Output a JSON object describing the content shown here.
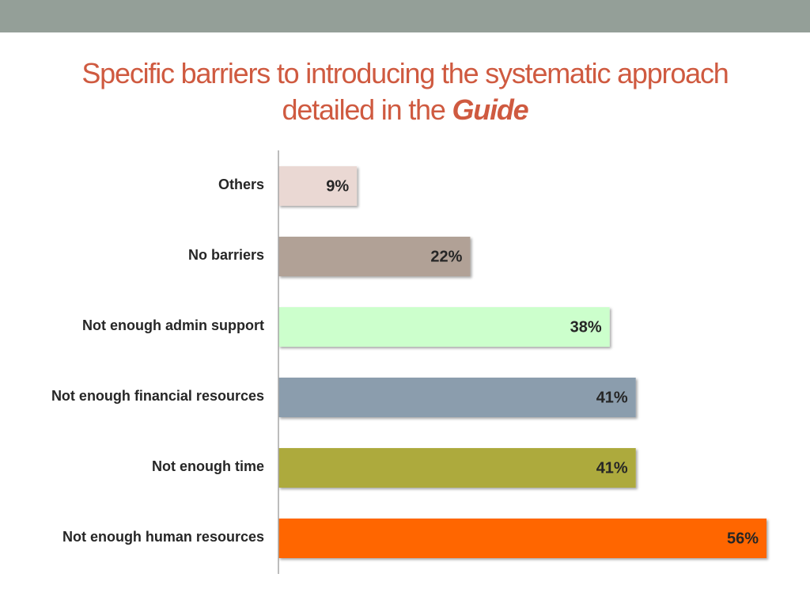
{
  "title": {
    "line1": "Specific barriers to introducing the systematic approach",
    "line2_prefix": "detailed in the ",
    "line2_emphasis": "Guide"
  },
  "colors": {
    "header_band": "#949f98",
    "title_text": "#cf5a40"
  },
  "chart_data": {
    "type": "bar",
    "orientation": "horizontal",
    "categories": [
      "Others",
      "No barriers",
      "Not enough admin support",
      "Not enough financial resources",
      "Not enough time",
      "Not enough human resources"
    ],
    "values": [
      9,
      22,
      38,
      41,
      41,
      56
    ],
    "value_labels": [
      "9%",
      "22%",
      "38%",
      "41%",
      "41%",
      "56%"
    ],
    "colors": [
      "#ead8d3",
      "#b1a196",
      "#ccffcc",
      "#8b9dad",
      "#adaa3e",
      "#ff6600"
    ],
    "unit": "%",
    "xlim": [
      0,
      56
    ],
    "grid": false,
    "legend": "none",
    "title": "",
    "xlabel": "",
    "ylabel": ""
  }
}
